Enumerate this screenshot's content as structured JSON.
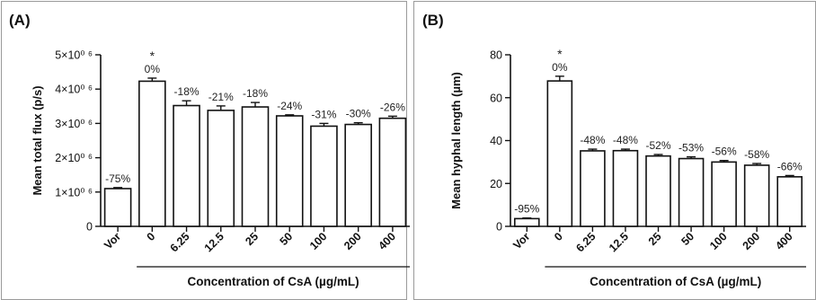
{
  "chart_data": [
    {
      "type": "bar",
      "panel_label": "(A)",
      "categories": [
        "Vor",
        "0",
        "6.25",
        "12.5",
        "25",
        "50",
        "100",
        "200",
        "400"
      ],
      "values": [
        1100000,
        4230000,
        3520000,
        3380000,
        3480000,
        3220000,
        2920000,
        2970000,
        3150000
      ],
      "errors": [
        30000,
        90000,
        140000,
        130000,
        130000,
        30000,
        80000,
        50000,
        60000
      ],
      "annotations": [
        "-75%",
        "0%",
        "-18%",
        "-21%",
        "-18%",
        "-24%",
        "-31%",
        "-30%",
        "-26%"
      ],
      "significance": [
        "",
        "*",
        "",
        "",
        "",
        "",
        "",
        "",
        ""
      ],
      "ylabel": "Mean total flux (p/s)",
      "xlabel": "Concentration of CsA (µg/mL)",
      "ylim": [
        0,
        5000000
      ],
      "yticks": [
        0,
        1000000,
        2000000,
        3000000,
        4000000,
        5000000
      ],
      "ytick_labels": [
        "0",
        "1×10⁰ ⁶",
        "2×10⁰ ⁶",
        "3×10⁰ ⁶",
        "4×10⁰ ⁶",
        "5×10⁰ ⁶"
      ],
      "grid": false
    },
    {
      "type": "bar",
      "panel_label": "(B)",
      "categories": [
        "Vor",
        "0",
        "6.25",
        "12.5",
        "25",
        "50",
        "100",
        "200",
        "400"
      ],
      "values": [
        3.6,
        67.8,
        35.2,
        35.3,
        32.8,
        31.6,
        30.0,
        28.5,
        23.1
      ],
      "errors": [
        0.3,
        2.2,
        0.8,
        0.7,
        0.7,
        0.8,
        0.7,
        0.8,
        0.6
      ],
      "annotations": [
        "-95%",
        "0%",
        "-48%",
        "-48%",
        "-52%",
        "-53%",
        "-56%",
        "-58%",
        "-66%"
      ],
      "significance": [
        "",
        "*",
        "",
        "",
        "",
        "",
        "",
        "",
        ""
      ],
      "ylabel": "Mean hyphal length (µm)",
      "xlabel": "Concentration of CsA (µg/mL)",
      "ylim": [
        0,
        80
      ],
      "yticks": [
        0,
        20,
        40,
        60,
        80
      ],
      "ytick_labels": [
        "0",
        "20",
        "40",
        "60",
        "80"
      ],
      "grid": false
    }
  ]
}
